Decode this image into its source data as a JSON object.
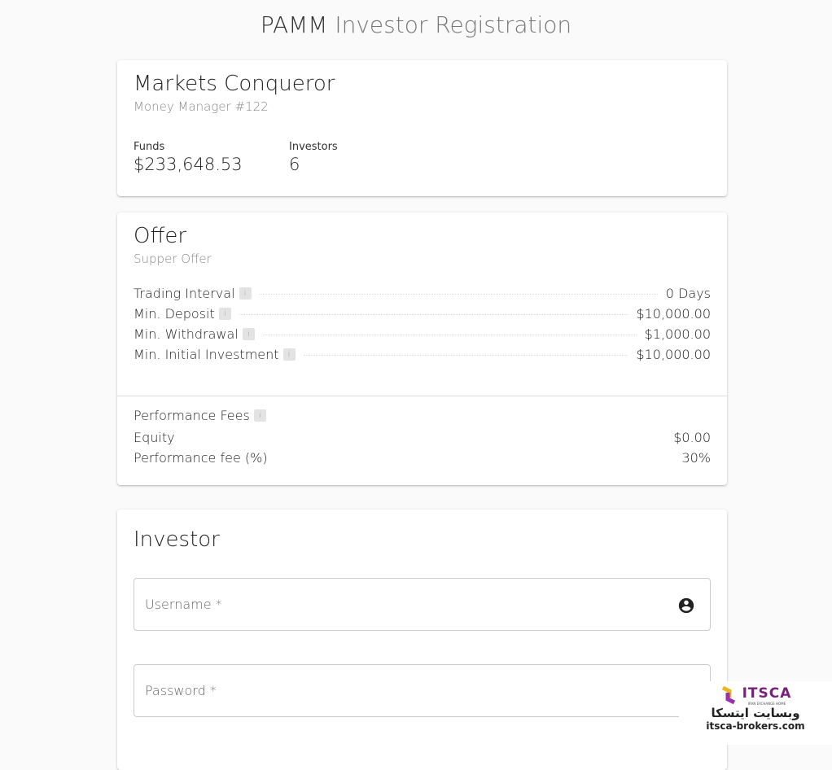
{
  "page": {
    "title_bold": "PAMM",
    "title_light": "Investor Registration"
  },
  "manager": {
    "name": "Markets Conqueror",
    "subtitle": "Money Manager #122",
    "funds_label": "Funds",
    "funds": "$233,648.53",
    "investors_label": "Investors",
    "investors": "6"
  },
  "offer": {
    "title": "Offer",
    "subtitle": "Supper Offer",
    "rows": [
      {
        "label": "Trading Interval",
        "value": "0 Days"
      },
      {
        "label": "Min. Deposit",
        "value": "$10,000.00"
      },
      {
        "label": "Min. Withdrawal",
        "value": "$1,000.00"
      },
      {
        "label": "Min. Initial Investment",
        "value": "$10,000.00"
      }
    ],
    "fees_title": "Performance Fees",
    "fees": [
      {
        "label": "Equity",
        "value": "$0.00"
      },
      {
        "label": "Performance fee (%)",
        "value": "30%"
      }
    ]
  },
  "investor": {
    "title": "Investor",
    "username_placeholder": "Username *",
    "password_placeholder": "Password *"
  },
  "watermark": {
    "brand": "ITSCA",
    "tagline": "IRAN EXCHANGE HOME",
    "fa": "وبسایت ایتسکا",
    "url": "itsca-brokers.com"
  },
  "info_glyph": "i"
}
